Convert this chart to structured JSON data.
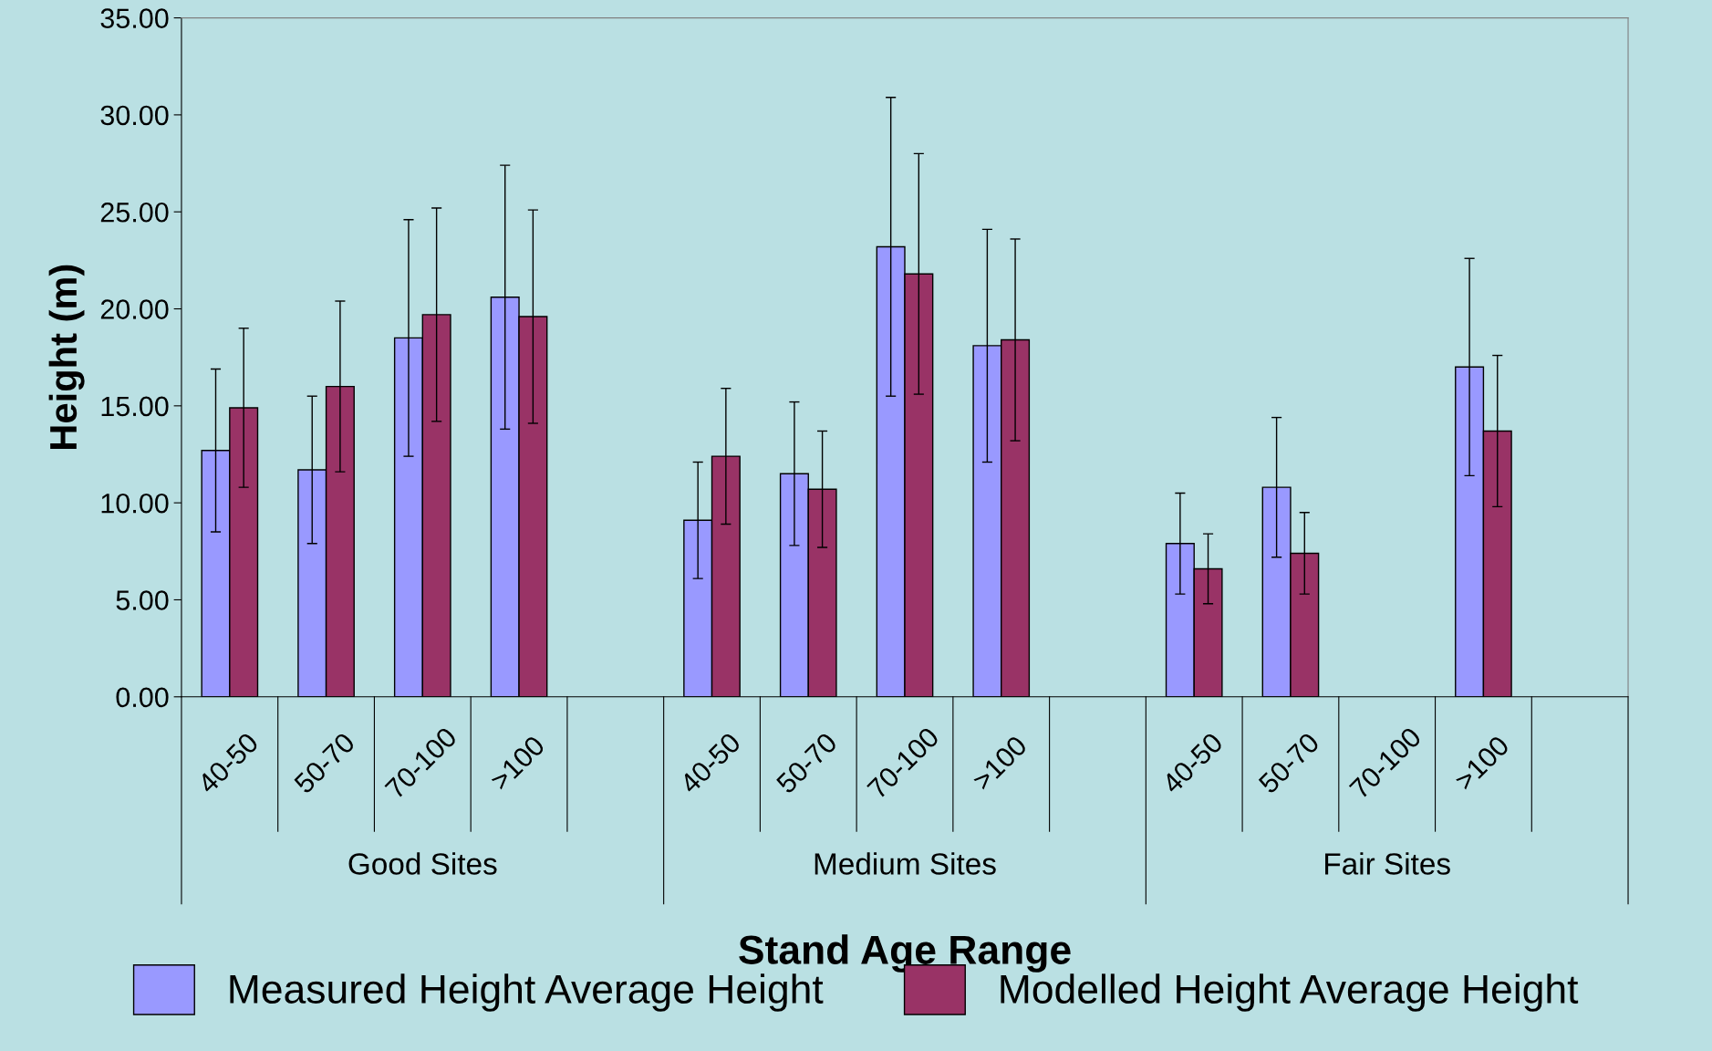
{
  "chart_data": {
    "type": "bar",
    "xlabel": "Stand Age Range",
    "ylabel": "Height (m)",
    "categories": [
      "40-50",
      "50-70",
      "70-100",
      ">100",
      null,
      "40-50",
      "50-70",
      "70-100",
      ">100",
      null,
      "40-50",
      "50-70",
      "70-100",
      ">100",
      null
    ],
    "series": [
      {
        "name": "Measured Height Average Height",
        "color": "#9999ff",
        "values": [
          12.7,
          11.7,
          18.5,
          20.6,
          null,
          9.1,
          11.5,
          23.2,
          18.1,
          null,
          7.9,
          10.8,
          null,
          17.0,
          null
        ],
        "errors": [
          4.2,
          3.8,
          6.1,
          6.8,
          null,
          3.0,
          3.7,
          7.7,
          6.0,
          null,
          2.6,
          3.6,
          null,
          5.6,
          null
        ]
      },
      {
        "name": "Modelled Height Average Height",
        "color": "#993366",
        "values": [
          14.9,
          16.0,
          19.7,
          19.6,
          null,
          12.4,
          10.7,
          21.8,
          18.4,
          null,
          6.6,
          7.4,
          null,
          13.7,
          null
        ],
        "errors": [
          4.1,
          4.4,
          5.5,
          5.5,
          null,
          3.5,
          3.0,
          6.2,
          5.2,
          null,
          1.8,
          2.1,
          null,
          3.9,
          null
        ]
      }
    ],
    "annotations": [
      "Good Sites",
      "Medium Sites",
      "Fair Sites"
    ],
    "ylim": [
      0,
      35
    ],
    "yticks": [
      {
        "value": 0,
        "label": "0.00"
      },
      {
        "value": 5,
        "label": "5.00"
      },
      {
        "value": 10,
        "label": "10.00"
      },
      {
        "value": 15,
        "label": "15.00"
      },
      {
        "value": 20,
        "label": "20.00"
      },
      {
        "value": 25,
        "label": "25.00"
      },
      {
        "value": 30,
        "label": "30.00"
      },
      {
        "value": 35,
        "label": "35.00"
      }
    ],
    "grid": false,
    "legend": "bottom"
  }
}
